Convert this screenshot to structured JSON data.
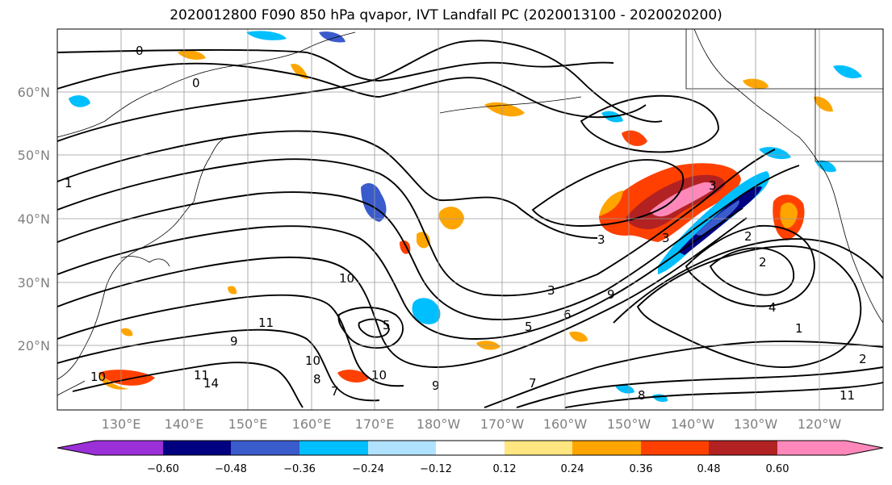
{
  "title": "2020012800 F090 850 hPa qvapor, IVT Landfall PC (2020013100 - 2020020200)",
  "latitudes": [
    "60°N",
    "50°N",
    "40°N",
    "30°N",
    "20°N"
  ],
  "longitudes": [
    "130°E",
    "140°E",
    "150°E",
    "160°E",
    "170°E",
    "180°W",
    "170°W",
    "160°W",
    "150°W",
    "140°W",
    "130°W",
    "120°W"
  ],
  "colorbar": {
    "ticks": [
      "−0.60",
      "−0.48",
      "−0.36",
      "−0.24",
      "−0.12",
      "0.12",
      "0.24",
      "0.36",
      "0.48",
      "0.60"
    ],
    "colors": [
      "#9b30d9",
      "#000080",
      "#3a5bcc",
      "#00bfff",
      "#b0e2ff",
      "#ffffff",
      "#ffe680",
      "#ffa500",
      "#ff4000",
      "#b22222",
      "#ff88bb",
      "#ff88bb"
    ]
  },
  "contour_labels": [
    "0",
    "0",
    "1",
    "3",
    "3",
    "3",
    "2",
    "4",
    "1",
    "2",
    "10",
    "11",
    "14",
    "10",
    "5",
    "8",
    "9",
    "7",
    "10",
    "11",
    "9",
    "10",
    "8",
    "11",
    "2",
    "3",
    "6",
    "9",
    "5",
    "7"
  ]
}
